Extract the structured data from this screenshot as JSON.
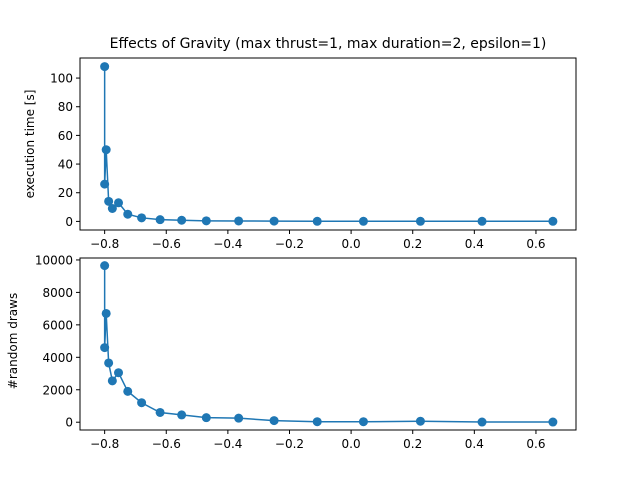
{
  "chart_data": [
    {
      "type": "line",
      "title": "Effects of Gravity (max thrust=1, max duration=2, epsilon=1)",
      "xlabel": "",
      "ylabel": "execution time [s]",
      "xlim": [
        -0.88,
        0.73
      ],
      "ylim": [
        -6,
        114
      ],
      "xticks": [
        -0.8,
        -0.6,
        -0.4,
        -0.2,
        0.0,
        0.2,
        0.4,
        0.6
      ],
      "xtick_labels": [
        "−0.8",
        "−0.6",
        "−0.4",
        "−0.2",
        "0.0",
        "0.2",
        "0.4",
        "0.6"
      ],
      "yticks": [
        0,
        20,
        40,
        60,
        80,
        100
      ],
      "ytick_labels": [
        "0",
        "20",
        "40",
        "60",
        "80",
        "100"
      ],
      "color": "#1f77b4",
      "marker": "circle",
      "grid": false,
      "series": [
        {
          "x": [
            -0.8,
            -0.8,
            -0.795,
            -0.787,
            -0.775,
            -0.755,
            -0.725,
            -0.68,
            -0.62,
            -0.55,
            -0.47,
            -0.365,
            -0.25,
            -0.11,
            0.04,
            0.225,
            0.425,
            0.655
          ],
          "y": [
            108,
            26,
            50,
            14,
            9,
            13,
            5,
            2.5,
            1.2,
            0.8,
            0.4,
            0.3,
            0.2,
            0.1,
            0.1,
            0.1,
            0.1,
            0.1
          ]
        }
      ]
    },
    {
      "type": "line",
      "title": "",
      "xlabel": "",
      "ylabel": "#random draws",
      "xlim": [
        -0.88,
        0.73
      ],
      "ylim": [
        -480,
        10120
      ],
      "xticks": [
        -0.8,
        -0.6,
        -0.4,
        -0.2,
        0.0,
        0.2,
        0.4,
        0.6
      ],
      "xtick_labels": [
        "−0.8",
        "−0.6",
        "−0.4",
        "−0.2",
        "0.0",
        "0.2",
        "0.4",
        "0.6"
      ],
      "yticks": [
        0,
        2000,
        4000,
        6000,
        8000,
        10000
      ],
      "ytick_labels": [
        "0",
        "2000",
        "4000",
        "6000",
        "8000",
        "10000"
      ],
      "color": "#1f77b4",
      "marker": "circle",
      "grid": false,
      "series": [
        {
          "x": [
            -0.8,
            -0.8,
            -0.795,
            -0.787,
            -0.775,
            -0.755,
            -0.725,
            -0.68,
            -0.62,
            -0.55,
            -0.47,
            -0.365,
            -0.25,
            -0.11,
            0.04,
            0.225,
            0.425,
            0.655
          ],
          "y": [
            9650,
            4600,
            6700,
            3650,
            2550,
            3050,
            1900,
            1200,
            600,
            450,
            280,
            250,
            100,
            30,
            30,
            60,
            10,
            10
          ]
        }
      ]
    }
  ]
}
